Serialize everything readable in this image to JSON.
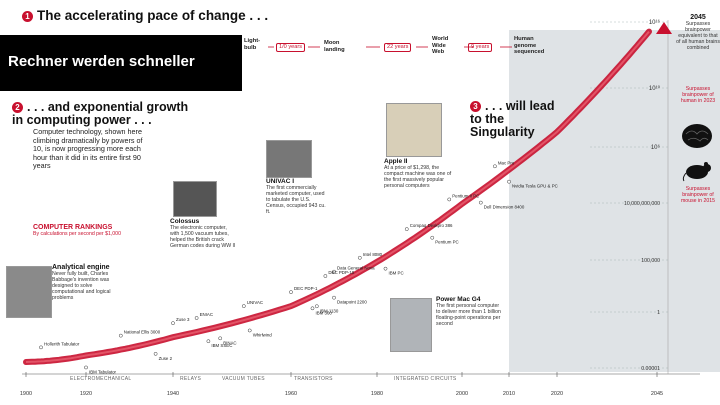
{
  "slide_caption": "Rechner werden schneller",
  "section1": {
    "num": "1",
    "title": "The accelerating pace of change . . .",
    "milestones": [
      {
        "label": "Light-\nbulb",
        "gap": "1/0 years"
      },
      {
        "label": "Moon\nlanding",
        "gap": "22 years"
      },
      {
        "label": "World\nWide\nWeb",
        "gap": "9 years"
      },
      {
        "label": "Human\ngenome\nsequenced",
        "gap": ""
      }
    ]
  },
  "section2": {
    "num": "2",
    "title": ". . . and exponential growth in computing power . . .",
    "body": "Computer technology, shown here climbing dramatically by powers of 10, is now progressing more each hour than it did in its entire first 90 years"
  },
  "section3": {
    "num": "3",
    "title": ". . . will lead to the Singularity"
  },
  "rankings": {
    "title": "COMPUTER RANKINGS",
    "subtitle": "By calculations per second per $1,000"
  },
  "annotations": {
    "analytical": {
      "title": "Analytical engine",
      "text": "Never fully built, Charles Babbage's invention was designed to solve computational and logical problems"
    },
    "colossus": {
      "title": "Colossus",
      "text": "The electronic computer, with 1,500 vacuum tubes, helped the British crack German codes during WW II"
    },
    "univac": {
      "title": "UNIVAC I",
      "text": "The first commercially marketed computer, used to tabulate the U.S. Census, occupied 943 cu. ft."
    },
    "apple": {
      "title": "Apple II",
      "text": "At a price of $1,298, the compact machine was one of the first massively popular personal computers"
    },
    "powermac": {
      "title": "Power Mac G4",
      "text": "The first personal computer to deliver more than 1 billion floating-point operations per second"
    }
  },
  "right_callouts": {
    "year2045": "2045",
    "c2045": "Surpasses brainpower equivalent to that of all human brains combined",
    "c2023": "Surpasses brainpower of human in 2023",
    "c2015": "Surpasses brainpower of mouse in 2015"
  },
  "eras": [
    "ELECTROMECHANICAL",
    "RELAYS",
    "VACUUM TUBES",
    "TRANSISTORS",
    "INTEGRATED CIRCUITS"
  ],
  "chart_data": {
    "type": "scatter",
    "title": "The accelerating pace of change",
    "ylabel": "Calculations per second per $1,000",
    "xlim": [
      1900,
      2045
    ],
    "x_ticks": [
      "1900",
      "1920",
      "1940",
      "1960",
      "1980",
      "2000",
      "2010",
      "2020",
      "2045"
    ],
    "y_ticks": [
      {
        "label": "10¹⁶",
        "exp": 16
      },
      {
        "label": "10¹⁰",
        "exp": 10
      },
      {
        "label": "10⁶",
        "exp": 6
      },
      {
        "label": "10,000,000,000",
        "exp": 10
      },
      {
        "label": "100,000",
        "exp": 5
      },
      {
        "label": "1",
        "exp": 0
      },
      {
        "label": "0.00001",
        "exp": -5
      }
    ],
    "points": [
      {
        "name": "Hollerith Tabulator",
        "year": 1905
      },
      {
        "name": "IBM Tabulator",
        "year": 1920
      },
      {
        "name": "National Ellis 3000",
        "year": 1928
      },
      {
        "name": "Zuse 2",
        "year": 1936
      },
      {
        "name": "Zuse 3",
        "year": 1940
      },
      {
        "name": "IBM SSEC",
        "year": 1946
      },
      {
        "name": "ENIAC",
        "year": 1944
      },
      {
        "name": "BINAC",
        "year": 1948
      },
      {
        "name": "UNIVAC",
        "year": 1952
      },
      {
        "name": "Whirlwind",
        "year": 1953
      },
      {
        "name": "DEC PDP-1",
        "year": 1960
      },
      {
        "name": "IBM 1130",
        "year": 1966
      },
      {
        "name": "DEC PDP-10",
        "year": 1968
      },
      {
        "name": "IBM 360",
        "year": 1965
      },
      {
        "name": "Data General Nova",
        "year": 1970
      },
      {
        "name": "Datapoint 2200",
        "year": 1970
      },
      {
        "name": "Intel 8080",
        "year": 1976
      },
      {
        "name": "IBM PC",
        "year": 1982
      },
      {
        "name": "Compaq Deskpro 386",
        "year": 1987
      },
      {
        "name": "Pentium PC",
        "year": 1993
      },
      {
        "name": "Pentium II PC",
        "year": 1997
      },
      {
        "name": "Dell Dimension 8400",
        "year": 2004
      },
      {
        "name": "Mac Pro",
        "year": 2007
      },
      {
        "name": "Nvidia Tesla GPU & PC",
        "year": 2010
      }
    ],
    "projection_start": 2011
  },
  "colors": {
    "accent": "#c8102e",
    "future_shade": "#dfe3e6"
  }
}
